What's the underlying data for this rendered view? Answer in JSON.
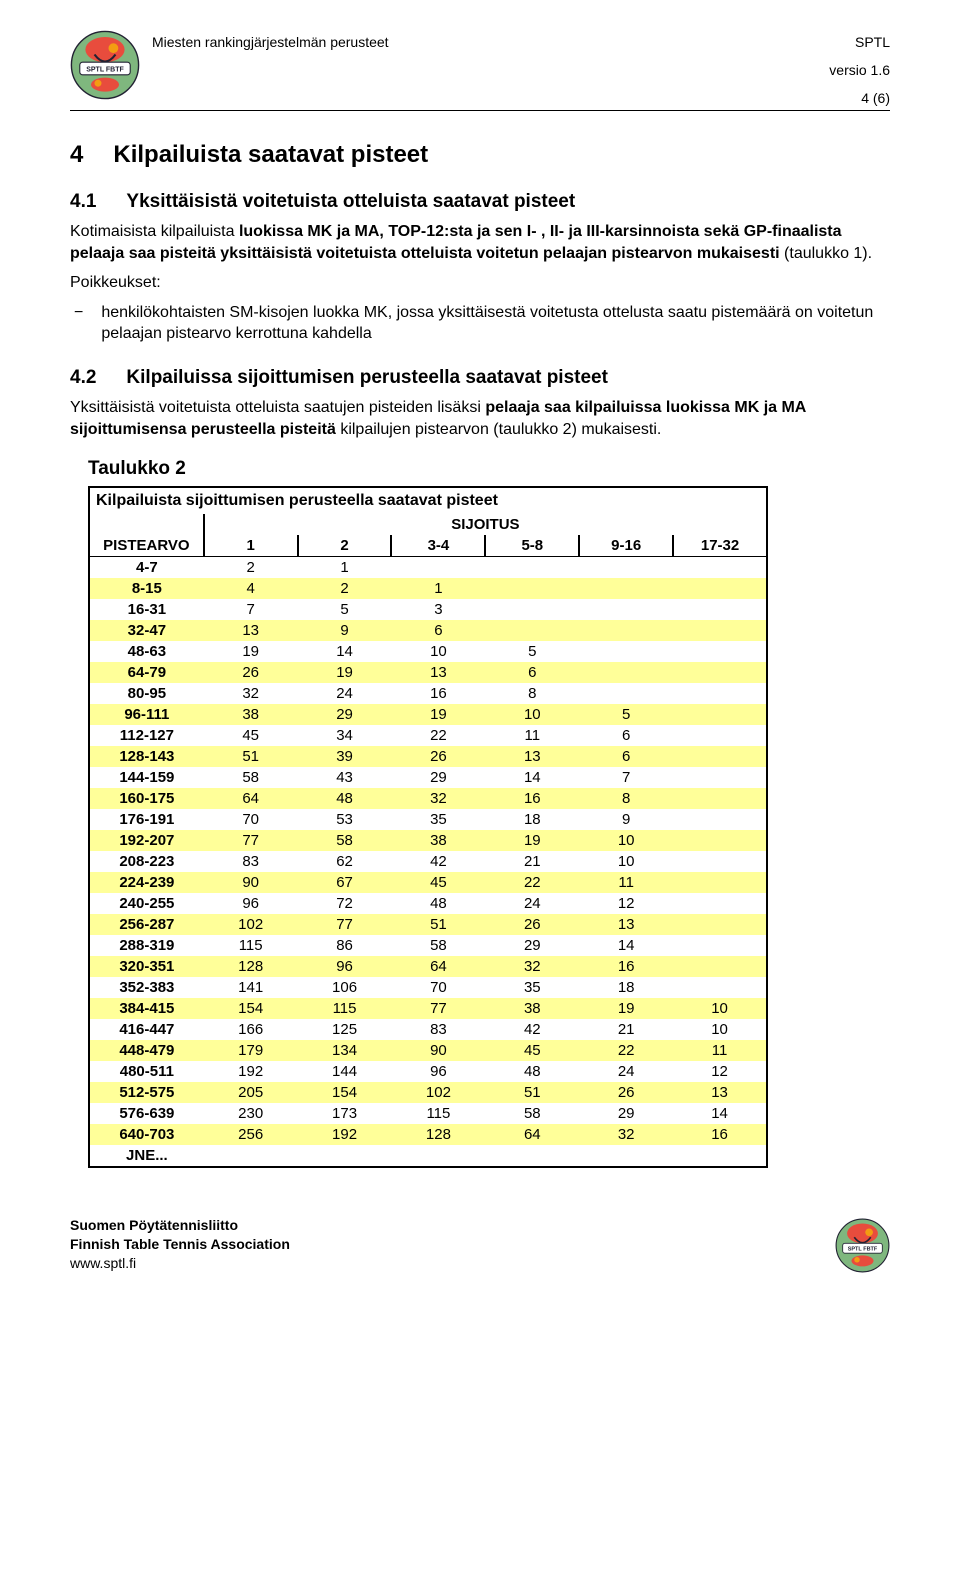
{
  "header": {
    "title_left": "Miesten rankingjärjestelmän perusteet",
    "title_right": "SPTL",
    "version": "versio 1.6",
    "page_num": "4 (6)"
  },
  "logo": {
    "outer_fill": "#7fb77e",
    "tt_red": "#e84c3d",
    "tt_orange": "#f39c12",
    "band_text_top": "SPTL",
    "band_text_bot": "FBTF",
    "band_fill": "#ffffff"
  },
  "section4": {
    "num": "4",
    "title": "Kilpailuista saatavat pisteet"
  },
  "section41": {
    "num": "4.1",
    "title": "Yksittäisistä voitetuista otteluista saatavat pisteet",
    "para1_pre": "Kotimaisista kilpailuista ",
    "para1_bold1": "luokissa MK ja MA, TOP-12:sta ja sen I- , II- ja III-karsinnoista sekä GP-finaalista pelaaja saa pisteitä yksittäisistä voitetuista otteluista voitetun pelaajan pistearvon mukaisesti",
    "para1_post": " (taulukko 1).",
    "poikkeukset_label": "Poikkeukset:",
    "bullet": "henkilökohtaisten SM-kisojen luokka MK, jossa yksittäisestä voitetusta ottelusta saatu pistemäärä on voitetun pelaajan pistearvo kerrottuna kahdella"
  },
  "section42": {
    "num": "4.2",
    "title": "Kilpailuissa sijoittumisen perusteella saatavat pisteet",
    "para_pre": "Yksittäisistä voitetuista otteluista saatujen pisteiden lisäksi ",
    "para_bold": "pelaaja saa kilpailuissa luokissa MK ja MA sijoittumisensa perusteella pisteitä",
    "para_post": " kilpailujen pistearvon (taulukko 2) mukaisesti."
  },
  "table2": {
    "title": "Taulukko 2",
    "caption": "Kilpailuista sijoittumisen perusteella saatavat pisteet",
    "sijoitus_label": "SIJOITUS",
    "pistearvo_label": "PISTEARVO",
    "columns": [
      "1",
      "2",
      "3-4",
      "5-8",
      "9-16",
      "17-32"
    ],
    "row_odd_bg": "#ffff99",
    "row_even_bg": "#ffffff",
    "rows": [
      {
        "label": "4-7",
        "vals": [
          "2",
          "1",
          "",
          "",
          "",
          ""
        ]
      },
      {
        "label": "8-15",
        "vals": [
          "4",
          "2",
          "1",
          "",
          "",
          ""
        ]
      },
      {
        "label": "16-31",
        "vals": [
          "7",
          "5",
          "3",
          "",
          "",
          ""
        ]
      },
      {
        "label": "32-47",
        "vals": [
          "13",
          "9",
          "6",
          "",
          "",
          ""
        ]
      },
      {
        "label": "48-63",
        "vals": [
          "19",
          "14",
          "10",
          "5",
          "",
          ""
        ]
      },
      {
        "label": "64-79",
        "vals": [
          "26",
          "19",
          "13",
          "6",
          "",
          ""
        ]
      },
      {
        "label": "80-95",
        "vals": [
          "32",
          "24",
          "16",
          "8",
          "",
          ""
        ]
      },
      {
        "label": "96-111",
        "vals": [
          "38",
          "29",
          "19",
          "10",
          "5",
          ""
        ]
      },
      {
        "label": "112-127",
        "vals": [
          "45",
          "34",
          "22",
          "11",
          "6",
          ""
        ]
      },
      {
        "label": "128-143",
        "vals": [
          "51",
          "39",
          "26",
          "13",
          "6",
          ""
        ]
      },
      {
        "label": "144-159",
        "vals": [
          "58",
          "43",
          "29",
          "14",
          "7",
          ""
        ]
      },
      {
        "label": "160-175",
        "vals": [
          "64",
          "48",
          "32",
          "16",
          "8",
          ""
        ]
      },
      {
        "label": "176-191",
        "vals": [
          "70",
          "53",
          "35",
          "18",
          "9",
          ""
        ]
      },
      {
        "label": "192-207",
        "vals": [
          "77",
          "58",
          "38",
          "19",
          "10",
          ""
        ]
      },
      {
        "label": "208-223",
        "vals": [
          "83",
          "62",
          "42",
          "21",
          "10",
          ""
        ]
      },
      {
        "label": "224-239",
        "vals": [
          "90",
          "67",
          "45",
          "22",
          "11",
          ""
        ]
      },
      {
        "label": "240-255",
        "vals": [
          "96",
          "72",
          "48",
          "24",
          "12",
          ""
        ]
      },
      {
        "label": "256-287",
        "vals": [
          "102",
          "77",
          "51",
          "26",
          "13",
          ""
        ]
      },
      {
        "label": "288-319",
        "vals": [
          "115",
          "86",
          "58",
          "29",
          "14",
          ""
        ]
      },
      {
        "label": "320-351",
        "vals": [
          "128",
          "96",
          "64",
          "32",
          "16",
          ""
        ]
      },
      {
        "label": "352-383",
        "vals": [
          "141",
          "106",
          "70",
          "35",
          "18",
          ""
        ]
      },
      {
        "label": "384-415",
        "vals": [
          "154",
          "115",
          "77",
          "38",
          "19",
          "10"
        ]
      },
      {
        "label": "416-447",
        "vals": [
          "166",
          "125",
          "83",
          "42",
          "21",
          "10"
        ]
      },
      {
        "label": "448-479",
        "vals": [
          "179",
          "134",
          "90",
          "45",
          "22",
          "11"
        ]
      },
      {
        "label": "480-511",
        "vals": [
          "192",
          "144",
          "96",
          "48",
          "24",
          "12"
        ]
      },
      {
        "label": "512-575",
        "vals": [
          "205",
          "154",
          "102",
          "51",
          "26",
          "13"
        ]
      },
      {
        "label": "576-639",
        "vals": [
          "230",
          "173",
          "115",
          "58",
          "29",
          "14"
        ]
      },
      {
        "label": "640-703",
        "vals": [
          "256",
          "192",
          "128",
          "64",
          "32",
          "16"
        ]
      },
      {
        "label": "JNE...",
        "vals": [
          "",
          "",
          "",
          "",
          "",
          ""
        ]
      }
    ]
  },
  "footer": {
    "line1": "Suomen Pöytätennisliitto",
    "line2": "Finnish Table Tennis Association",
    "line3": "www.sptl.fi"
  }
}
